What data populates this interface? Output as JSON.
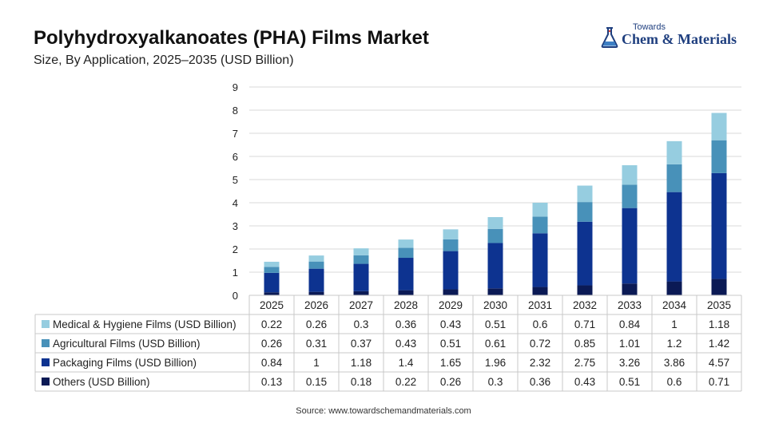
{
  "header": {
    "title": "Polyhydroxyalkanoates (PHA) Films Market",
    "subtitle": "Size, By Application, 2025–2035 (USD Billion)"
  },
  "logo": {
    "small": "Towards",
    "big": "Chem & Materials"
  },
  "source": "Source: www.towardschemandmaterials.com",
  "chart_data": {
    "type": "bar",
    "stacked": true,
    "title": "Polyhydroxyalkanoates (PHA) Films Market",
    "subtitle": "Size, By Application, 2025–2035 (USD Billion)",
    "categories": [
      "2025",
      "2026",
      "2027",
      "2028",
      "2029",
      "2030",
      "2031",
      "2032",
      "2033",
      "2034",
      "2035"
    ],
    "ylim": [
      0,
      9
    ],
    "yticks": [
      "0",
      "1",
      "2",
      "3",
      "4",
      "5",
      "6",
      "7",
      "8",
      "9"
    ],
    "grid": true,
    "legend": "data-table-below",
    "series": [
      {
        "name": "Medical & Hygiene Films (USD Billion)",
        "color": "#96cde0",
        "values": [
          0.22,
          0.26,
          0.3,
          0.36,
          0.43,
          0.51,
          0.6,
          0.71,
          0.84,
          1,
          1.18
        ],
        "labels": [
          "0.22",
          "0.26",
          "0.3",
          "0.36",
          "0.43",
          "0.51",
          "0.6",
          "0.71",
          "0.84",
          "1",
          "1.18"
        ]
      },
      {
        "name": "Agricultural Films (USD Billion)",
        "color": "#4891b9",
        "values": [
          0.26,
          0.31,
          0.37,
          0.43,
          0.51,
          0.61,
          0.72,
          0.85,
          1.01,
          1.2,
          1.42
        ],
        "labels": [
          "0.26",
          "0.31",
          "0.37",
          "0.43",
          "0.51",
          "0.61",
          "0.72",
          "0.85",
          "1.01",
          "1.2",
          "1.42"
        ]
      },
      {
        "name": "Packaging Films (USD Billion)",
        "color": "#0d3390",
        "values": [
          0.84,
          1,
          1.18,
          1.4,
          1.65,
          1.96,
          2.32,
          2.75,
          3.26,
          3.86,
          4.57
        ],
        "labels": [
          "0.84",
          "1",
          "1.18",
          "1.4",
          "1.65",
          "1.96",
          "2.32",
          "2.75",
          "3.26",
          "3.86",
          "4.57"
        ]
      },
      {
        "name": "Others (USD Billion)",
        "color": "#0b1a55",
        "values": [
          0.13,
          0.15,
          0.18,
          0.22,
          0.26,
          0.3,
          0.36,
          0.43,
          0.51,
          0.6,
          0.71
        ],
        "labels": [
          "0.13",
          "0.15",
          "0.18",
          "0.22",
          "0.26",
          "0.3",
          "0.36",
          "0.43",
          "0.51",
          "0.6",
          "0.71"
        ]
      }
    ]
  }
}
